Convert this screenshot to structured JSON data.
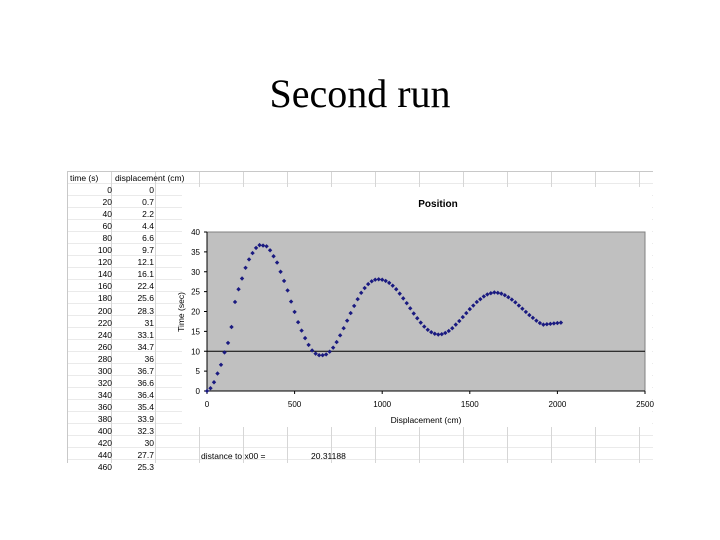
{
  "slide": {
    "title": "Second run"
  },
  "table": {
    "headers": {
      "time": "time (s)",
      "displacement": "displacement (cm)"
    },
    "rows": [
      {
        "time": "0",
        "disp": "0"
      },
      {
        "time": "20",
        "disp": "0.7"
      },
      {
        "time": "40",
        "disp": "2.2"
      },
      {
        "time": "60",
        "disp": "4.4"
      },
      {
        "time": "80",
        "disp": "6.6"
      },
      {
        "time": "100",
        "disp": "9.7"
      },
      {
        "time": "120",
        "disp": "12.1"
      },
      {
        "time": "140",
        "disp": "16.1"
      },
      {
        "time": "160",
        "disp": "22.4"
      },
      {
        "time": "180",
        "disp": "25.6"
      },
      {
        "time": "200",
        "disp": "28.3"
      },
      {
        "time": "220",
        "disp": "31"
      },
      {
        "time": "240",
        "disp": "33.1"
      },
      {
        "time": "260",
        "disp": "34.7"
      },
      {
        "time": "280",
        "disp": "36"
      },
      {
        "time": "300",
        "disp": "36.7"
      },
      {
        "time": "320",
        "disp": "36.6"
      },
      {
        "time": "340",
        "disp": "36.4"
      },
      {
        "time": "360",
        "disp": "35.4"
      },
      {
        "time": "380",
        "disp": "33.9"
      },
      {
        "time": "400",
        "disp": "32.3"
      },
      {
        "time": "420",
        "disp": "30"
      },
      {
        "time": "440",
        "disp": "27.7"
      },
      {
        "time": "460",
        "disp": "25.3"
      }
    ]
  },
  "note": {
    "label": "distance to x00 =",
    "value": "20.31188"
  },
  "chart_data": {
    "type": "scatter",
    "title": "Position",
    "xlabel": "Displacement (cm)",
    "ylabel": "Time (sec)",
    "xlim": [
      0,
      2500
    ],
    "ylim": [
      0,
      40
    ],
    "xticks": [
      0,
      500,
      1000,
      1500,
      2000,
      2500
    ],
    "xtick_labels": [
      "0",
      "500",
      "1000",
      "1500",
      "2000",
      "2500"
    ],
    "yticks": [
      0,
      5,
      10,
      15,
      20,
      25,
      30,
      35,
      40
    ],
    "ytick_labels": [
      "0",
      "5",
      "10",
      "15",
      "20",
      "25",
      "30",
      "35",
      "40"
    ],
    "reference_line_y": 10,
    "grid": false,
    "legend": "none",
    "colors": {
      "plot_bg": "#c0c0c0",
      "marker": "#1a1a80",
      "axis": "#000000"
    },
    "series": [
      {
        "x": [
          0,
          20,
          40,
          60,
          80,
          100,
          120,
          140,
          160,
          180,
          200,
          220,
          240,
          260,
          280,
          300,
          320,
          340,
          360,
          380,
          400,
          420,
          440,
          460,
          480,
          500,
          520,
          540,
          560,
          580,
          600,
          620,
          640,
          660,
          680,
          700,
          720,
          740,
          760,
          780,
          800,
          820,
          840,
          860,
          880,
          900,
          920,
          940,
          960,
          980,
          1000,
          1020,
          1040,
          1060,
          1080,
          1100,
          1120,
          1140,
          1160,
          1180,
          1200,
          1220,
          1240,
          1260,
          1280,
          1300,
          1320,
          1340,
          1360,
          1380,
          1400,
          1420,
          1440,
          1460,
          1480,
          1500,
          1520,
          1540,
          1560,
          1580,
          1600,
          1620,
          1640,
          1660,
          1680,
          1700,
          1720,
          1740,
          1760,
          1780,
          1800,
          1820,
          1840,
          1860,
          1880,
          1900,
          1920,
          1940,
          1960,
          1980,
          2000,
          2020
        ],
        "y": [
          0,
          0.7,
          2.2,
          4.4,
          6.6,
          9.7,
          12.1,
          16.1,
          22.4,
          25.6,
          28.3,
          31,
          33.1,
          34.7,
          36,
          36.7,
          36.6,
          36.4,
          35.4,
          33.9,
          32.3,
          30,
          27.7,
          25.3,
          22.5,
          19.9,
          17.3,
          15.2,
          13.3,
          11.6,
          10.2,
          9.4,
          9,
          9,
          9.2,
          9.9,
          10.9,
          12.3,
          14,
          15.8,
          17.7,
          19.6,
          21.4,
          23.1,
          24.7,
          25.9,
          26.9,
          27.6,
          28,
          28.1,
          28,
          27.7,
          27.2,
          26.5,
          25.6,
          24.5,
          23.3,
          22.1,
          20.8,
          19.5,
          18.3,
          17.2,
          16.2,
          15.4,
          14.8,
          14.4,
          14.2,
          14.3,
          14.6,
          15.1,
          15.8,
          16.7,
          17.6,
          18.6,
          19.6,
          20.6,
          21.5,
          22.4,
          23.1,
          23.8,
          24.3,
          24.6,
          24.8,
          24.7,
          24.5,
          24.1,
          23.6,
          23,
          22.3,
          21.5,
          20.7,
          19.9,
          19.1,
          18.4,
          17.7,
          17.1,
          16.7,
          16.8,
          16.9,
          17,
          17.1,
          17.2
        ]
      }
    ]
  }
}
